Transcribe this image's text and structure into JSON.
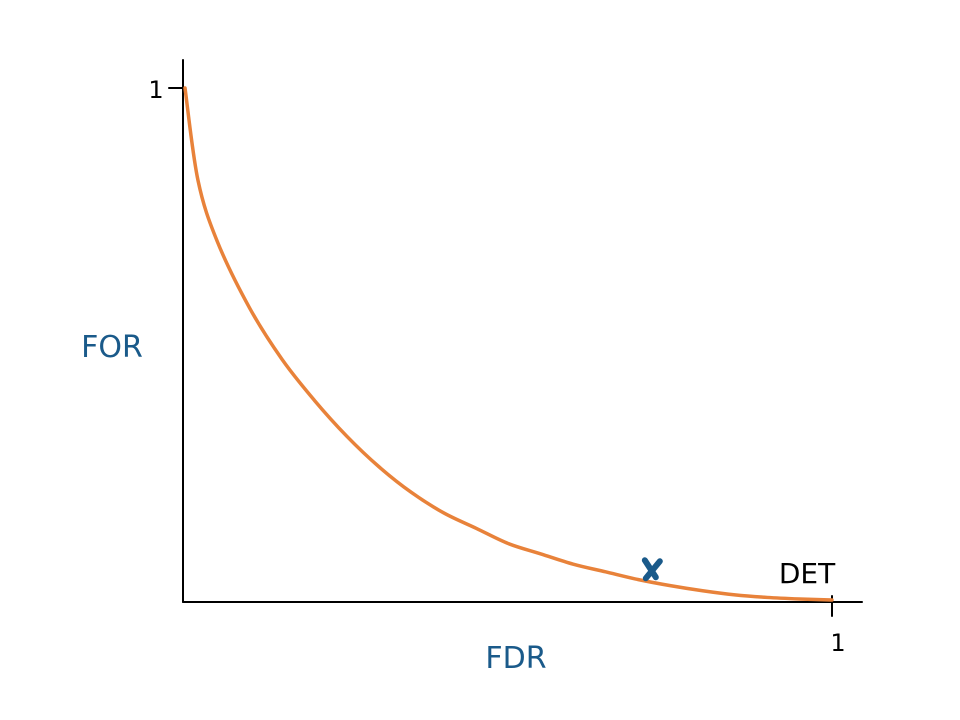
{
  "chart_data": {
    "type": "line",
    "xlabel": "FDR",
    "ylabel": "FOR",
    "xlim": [
      0,
      1
    ],
    "ylim": [
      0,
      1
    ],
    "x_ticks": [
      {
        "value": 1,
        "label": "1"
      }
    ],
    "y_ticks": [
      {
        "value": 1,
        "label": "1"
      }
    ],
    "grid": false,
    "series": [
      {
        "name": "DET",
        "color": "#e8823a",
        "x": [
          0.0,
          0.02,
          0.05,
          0.1,
          0.15,
          0.2,
          0.25,
          0.3,
          0.35,
          0.4,
          0.45,
          0.5,
          0.55,
          0.6,
          0.65,
          0.7,
          0.75,
          0.8,
          0.85,
          0.9,
          0.95,
          1.0
        ],
        "y": [
          1.0,
          0.82,
          0.7,
          0.57,
          0.47,
          0.39,
          0.32,
          0.26,
          0.21,
          0.17,
          0.14,
          0.11,
          0.09,
          0.07,
          0.055,
          0.04,
          0.028,
          0.018,
          0.01,
          0.005,
          0.002,
          0.0
        ]
      }
    ],
    "marker": {
      "x": 0.72,
      "y": 0.06,
      "symbol": "x",
      "color": "#1a5a8a"
    },
    "colors": {
      "axis": "#000000",
      "curve": "#e8823a",
      "axis_labels": "#1a5a8a",
      "marker": "#1a5a8a",
      "annotation": "#000000"
    }
  }
}
